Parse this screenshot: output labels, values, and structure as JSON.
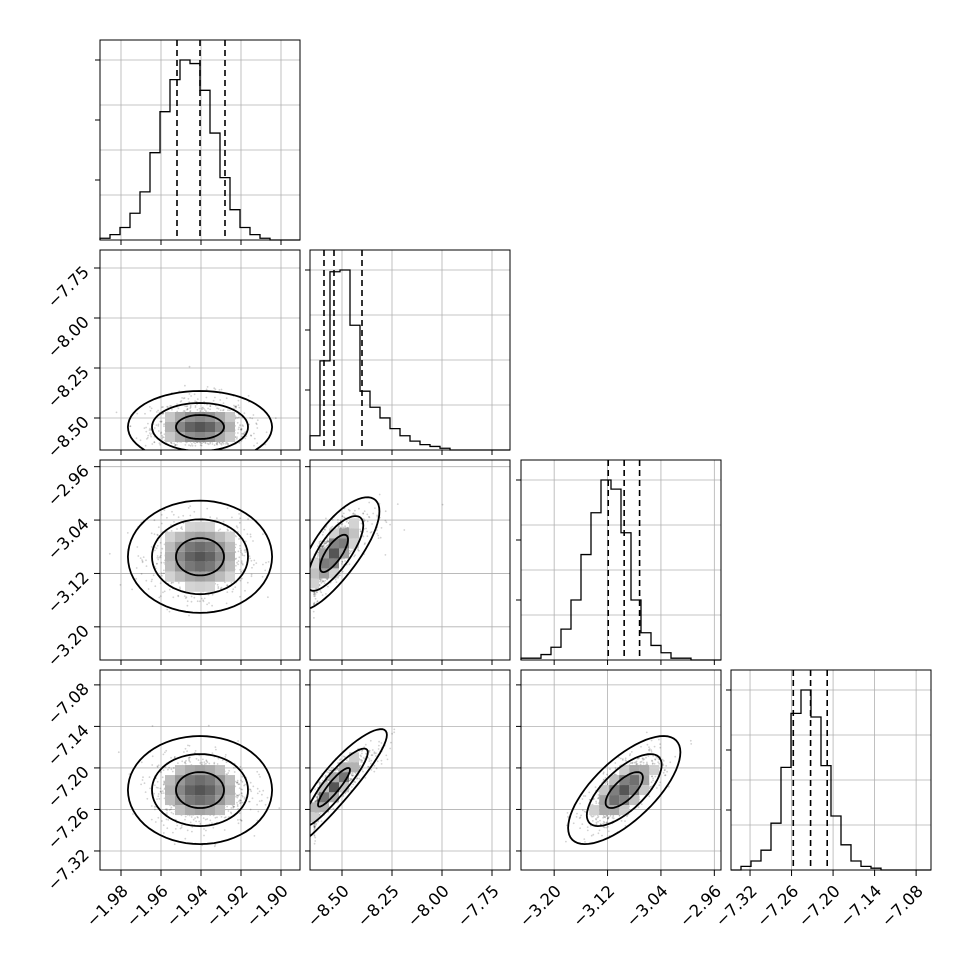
{
  "chart_data": {
    "type": "corner",
    "params": [
      {
        "ticks": [
          -1.98,
          -1.96,
          -1.94,
          -1.92,
          -1.9
        ],
        "tick_labels": [
          "−1.98",
          "−1.96",
          "−1.94",
          "−1.92",
          "−1.90"
        ],
        "range": [
          -1.9905,
          -1.8905
        ],
        "quantiles": [
          -1.952,
          -1.9405,
          -1.928
        ]
      },
      {
        "ticks": [
          -8.5,
          -8.25,
          -8.0,
          -7.75
        ],
        "tick_labels": [
          "−8.50",
          "−8.25",
          "−8.00",
          "−7.75"
        ],
        "range": [
          -8.66,
          -7.66
        ],
        "quantiles": [
          -8.59,
          -8.54,
          -8.4
        ]
      },
      {
        "ticks": [
          -3.2,
          -3.12,
          -3.04,
          -2.96
        ],
        "tick_labels": [
          "−3.20",
          "−3.12",
          "−3.04",
          "−2.96"
        ],
        "range": [
          -3.2497,
          -2.95
        ],
        "quantiles": [
          -3.119,
          -3.0951,
          -3.072
        ]
      },
      {
        "ticks": [
          -7.32,
          -7.26,
          -7.2,
          -7.14,
          -7.08
        ],
        "tick_labels": [
          "−7.32",
          "−7.26",
          "−7.20",
          "−7.14",
          "−7.08"
        ],
        "range": [
          -7.3475,
          -7.0585
        ],
        "quantiles": [
          -7.2575,
          -7.2325,
          -7.2085
        ]
      }
    ],
    "histograms": [
      [
        1,
        3,
        7,
        15,
        27,
        49,
        72,
        90,
        101,
        99,
        84,
        60,
        35,
        17,
        7,
        3,
        1,
        0,
        0,
        0
      ],
      [
        8,
        50,
        100,
        101,
        70,
        33,
        24,
        18,
        12,
        8,
        5,
        3,
        2,
        1,
        0,
        0,
        0,
        0,
        0,
        0
      ],
      [
        1,
        1,
        3,
        7,
        17,
        33,
        58,
        81,
        99,
        94,
        70,
        33,
        15,
        8,
        4,
        1,
        1,
        0,
        0,
        0
      ],
      [
        0,
        2,
        5,
        11,
        26,
        57,
        87,
        100,
        85,
        58,
        30,
        14,
        5,
        2,
        1,
        0,
        0,
        0,
        0,
        0
      ]
    ],
    "pairs": [
      {
        "x": 0,
        "y": 1,
        "center": [
          -1.9405,
          -8.545
        ],
        "sigma": [
          0.012,
          0.06
        ],
        "angle": 0,
        "skew_y": 0.18
      },
      {
        "x": 0,
        "y": 2,
        "center": [
          -1.9405,
          -3.095
        ],
        "sigma": [
          0.012,
          0.028
        ],
        "angle": 0,
        "skew_y": 0
      },
      {
        "x": 0,
        "y": 3,
        "center": [
          -1.9405,
          -7.232
        ],
        "sigma": [
          0.012,
          0.026
        ],
        "angle": 0,
        "skew_y": 0
      },
      {
        "x": 1,
        "y": 2,
        "center": [
          -8.54,
          -3.09
        ],
        "sigma": [
          0.07,
          0.028
        ],
        "corr": 0.75,
        "skew_x": 0.2
      },
      {
        "x": 1,
        "y": 3,
        "center": [
          -8.54,
          -7.228
        ],
        "sigma": [
          0.08,
          0.028
        ],
        "corr": 0.9,
        "skew_x": 0.25
      },
      {
        "x": 2,
        "y": 3,
        "center": [
          -3.095,
          -7.232
        ],
        "sigma": [
          0.028,
          0.026
        ],
        "corr": 0.7,
        "skew_x": 0
      }
    ],
    "levels": [
      0.393,
      0.865,
      0.989
    ],
    "grid": true
  }
}
